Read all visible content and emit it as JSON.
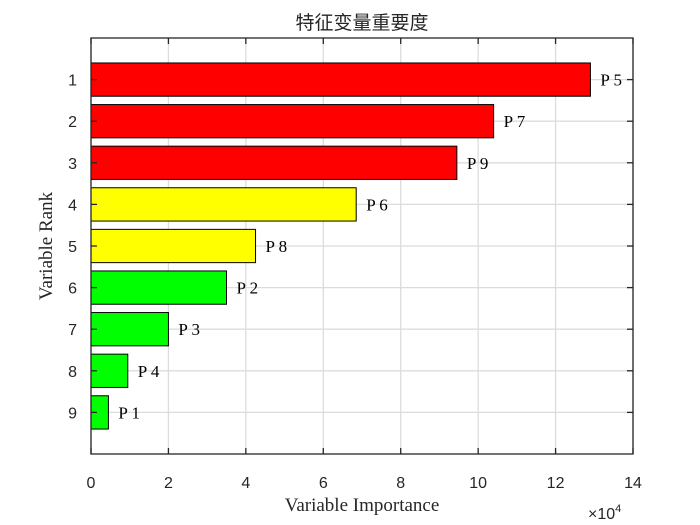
{
  "chart_data": {
    "type": "bar",
    "orientation": "horizontal",
    "title": "特征变量重要度",
    "xlabel": "Variable Importance",
    "ylabel": "Variable Rank",
    "x_multiplier": "×10",
    "x_multiplier_exponent": "4",
    "xlim": [
      0,
      14
    ],
    "xticks": [
      "0",
      "2",
      "4",
      "6",
      "8",
      "10",
      "12",
      "14"
    ],
    "ylim": [
      0,
      10
    ],
    "grid": true,
    "bars": [
      {
        "rank": "1",
        "label": "P 5",
        "value": 129000,
        "color": "#ff0000"
      },
      {
        "rank": "2",
        "label": "P 7",
        "value": 104000,
        "color": "#ff0000"
      },
      {
        "rank": "3",
        "label": "P 9",
        "value": 94500,
        "color": "#ff0000"
      },
      {
        "rank": "4",
        "label": "P 6",
        "value": 68500,
        "color": "#ffff00"
      },
      {
        "rank": "5",
        "label": "P 8",
        "value": 42500,
        "color": "#ffff00"
      },
      {
        "rank": "6",
        "label": "P 2",
        "value": 35000,
        "color": "#00ff00"
      },
      {
        "rank": "7",
        "label": "P 3",
        "value": 20000,
        "color": "#00ff00"
      },
      {
        "rank": "8",
        "label": "P 4",
        "value": 9500,
        "color": "#00ff00"
      },
      {
        "rank": "9",
        "label": "P 1",
        "value": 4500,
        "color": "#00ff00"
      }
    ]
  }
}
